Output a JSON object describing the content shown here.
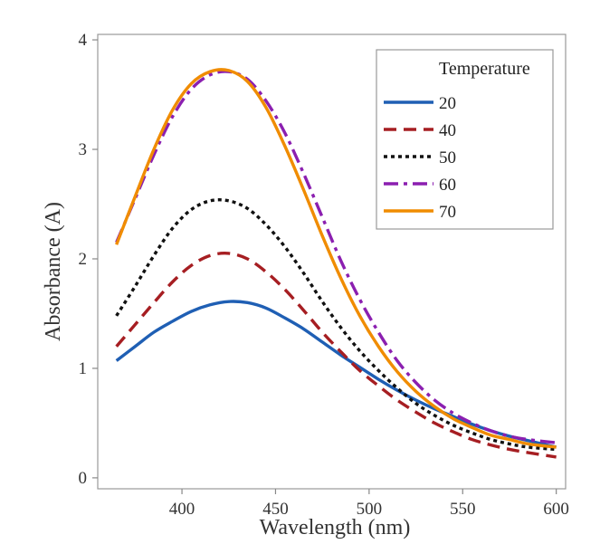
{
  "chart_data": {
    "type": "line",
    "title": "",
    "xlabel": "Wavelength (nm)",
    "ylabel": "Absorbance (A)",
    "xlim": [
      355,
      605
    ],
    "ylim": [
      -0.1,
      4.05
    ],
    "xticks": [
      400,
      450,
      500,
      550,
      600
    ],
    "yticks": [
      0,
      1,
      2,
      3,
      4
    ],
    "grid": false,
    "legend": {
      "title": "Temperature",
      "position": "top-right"
    },
    "x": [
      365,
      375,
      385,
      395,
      405,
      415,
      425,
      435,
      445,
      455,
      465,
      475,
      485,
      495,
      505,
      515,
      525,
      535,
      545,
      555,
      565,
      575,
      585,
      600
    ],
    "series": [
      {
        "name": "20",
        "color": "#1f5fb4",
        "dash": "solid",
        "values": [
          1.07,
          1.2,
          1.33,
          1.43,
          1.52,
          1.58,
          1.61,
          1.6,
          1.55,
          1.46,
          1.36,
          1.24,
          1.12,
          1.01,
          0.9,
          0.8,
          0.71,
          0.63,
          0.56,
          0.49,
          0.43,
          0.38,
          0.34,
          0.28
        ]
      },
      {
        "name": "40",
        "color": "#a61e22",
        "dash": "dashed",
        "values": [
          1.2,
          1.4,
          1.6,
          1.79,
          1.94,
          2.03,
          2.05,
          2.0,
          1.88,
          1.72,
          1.53,
          1.33,
          1.15,
          0.98,
          0.84,
          0.71,
          0.6,
          0.5,
          0.42,
          0.35,
          0.3,
          0.26,
          0.23,
          0.19
        ]
      },
      {
        "name": "50",
        "color": "#111111",
        "dash": "dotted",
        "values": [
          1.48,
          1.75,
          2.03,
          2.28,
          2.45,
          2.53,
          2.53,
          2.46,
          2.31,
          2.11,
          1.87,
          1.61,
          1.37,
          1.16,
          0.98,
          0.82,
          0.68,
          0.57,
          0.48,
          0.41,
          0.35,
          0.31,
          0.28,
          0.26
        ]
      },
      {
        "name": "60",
        "color": "#8b1fb0",
        "dash": "dashdot",
        "values": [
          2.15,
          2.55,
          2.95,
          3.3,
          3.55,
          3.68,
          3.71,
          3.64,
          3.44,
          3.15,
          2.78,
          2.38,
          1.98,
          1.63,
          1.33,
          1.07,
          0.87,
          0.71,
          0.59,
          0.5,
          0.43,
          0.38,
          0.35,
          0.32
        ]
      },
      {
        "name": "70",
        "color": "#f08c00",
        "dash": "solid",
        "values": [
          2.13,
          2.57,
          3.0,
          3.36,
          3.6,
          3.71,
          3.72,
          3.62,
          3.38,
          3.03,
          2.63,
          2.21,
          1.82,
          1.48,
          1.2,
          0.97,
          0.79,
          0.65,
          0.54,
          0.46,
          0.39,
          0.35,
          0.31,
          0.28
        ]
      }
    ]
  }
}
